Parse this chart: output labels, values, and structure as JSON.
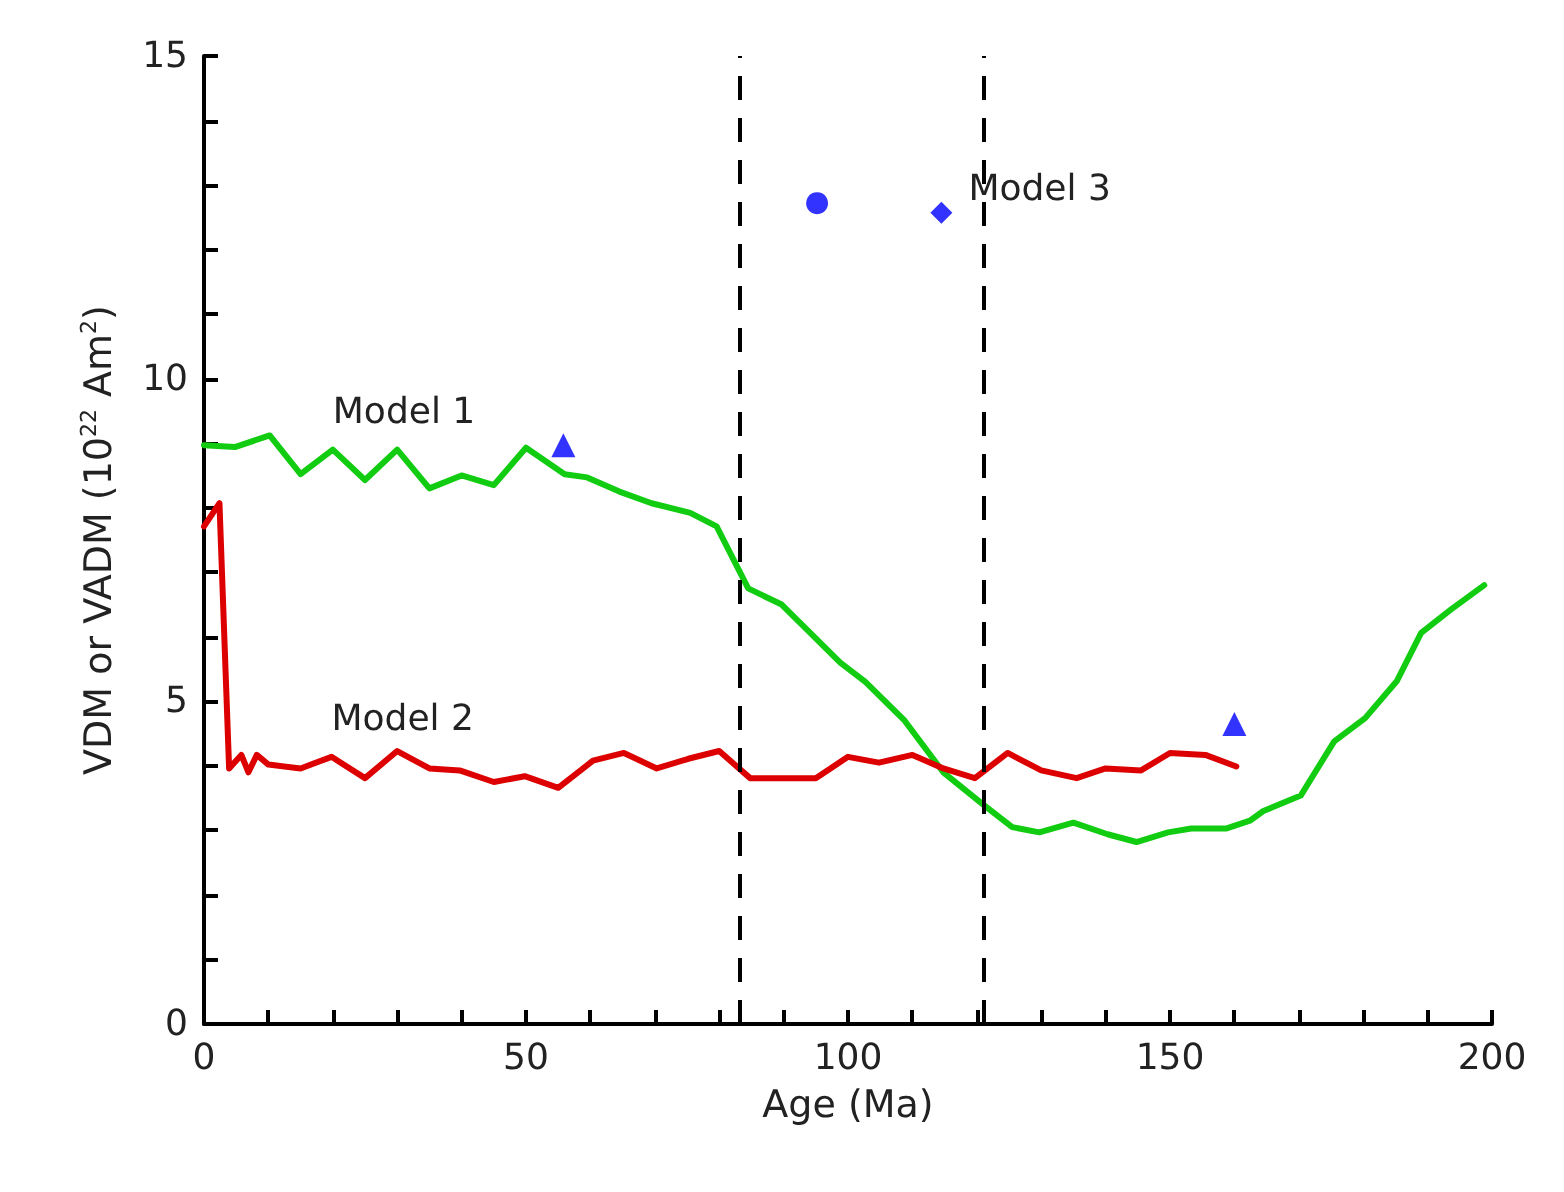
{
  "chart_data": {
    "type": "line",
    "xlabel": "Age (Ma)",
    "ylabel": "VDM or VADM (10$^{22}$ Am$^{2}$)",
    "xlim": [
      0,
      200
    ],
    "ylim": [
      0,
      15
    ],
    "xticks": [
      0,
      {
        "value": 10,
        "label": null
      },
      {
        "value": 20,
        "label": null
      },
      {
        "value": 30,
        "label": null
      },
      {
        "value": 40,
        "label": null
      },
      50,
      {
        "value": 60,
        "label": null
      },
      {
        "value": 70,
        "label": null
      },
      {
        "value": 80,
        "label": null
      },
      {
        "value": 90,
        "label": null
      },
      100,
      {
        "value": 110,
        "label": null
      },
      {
        "value": 120,
        "label": null
      },
      {
        "value": 130,
        "label": null
      },
      {
        "value": 140,
        "label": null
      },
      150,
      {
        "value": 160,
        "label": null
      },
      {
        "value": 170,
        "label": null
      },
      {
        "value": 180,
        "label": null
      },
      {
        "value": 190,
        "label": null
      },
      200
    ],
    "yticks": [
      0,
      {
        "value": 1,
        "label": null
      },
      {
        "value": 2,
        "label": null
      },
      {
        "value": 3,
        "label": null
      },
      {
        "value": 4,
        "label": null
      },
      5,
      {
        "value": 6,
        "label": null
      },
      {
        "value": 7,
        "label": null
      },
      {
        "value": 8,
        "label": null
      },
      {
        "value": 9,
        "label": null
      },
      10,
      {
        "value": 11,
        "label": null
      },
      {
        "value": 12,
        "label": null
      },
      {
        "value": 13,
        "label": null
      },
      {
        "value": 14,
        "label": null
      },
      15
    ],
    "grid": false,
    "legend": false,
    "line_style": "solid",
    "ref_lines": [
      {
        "axis": "x",
        "value": 83,
        "color": "#000000",
        "line_style": "dashed"
      },
      {
        "axis": "x",
        "value": 121,
        "color": "#000000",
        "line_style": "dashed"
      }
    ],
    "series": [
      {
        "name": "Model 1",
        "color": "#11cc11",
        "marker": "none",
        "x": [
          0,
          4.8,
          10.2,
          15,
          20,
          25,
          30,
          35,
          40,
          45,
          50,
          56,
          59.5,
          64.5,
          69.5,
          75.5,
          79.6,
          84.5,
          89.7,
          98.8,
          102.7,
          108.8,
          114.8,
          121,
          125.5,
          129.7,
          135,
          140.3,
          144.8,
          149.7,
          153.3,
          158.8,
          162.4,
          164.5,
          170.3,
          175.5,
          180.3,
          185.2,
          189,
          193.6,
          198.8
        ],
        "values": [
          8.97,
          8.94,
          9.12,
          8.52,
          8.9,
          8.43,
          8.9,
          8.3,
          8.5,
          8.35,
          8.93,
          8.52,
          8.47,
          8.25,
          8.07,
          7.92,
          7.71,
          6.75,
          6.5,
          5.6,
          5.3,
          4.7,
          3.9,
          3.4,
          3.05,
          2.97,
          3.12,
          2.94,
          2.82,
          2.97,
          3.03,
          3.03,
          3.15,
          3.3,
          3.54,
          4.38,
          4.74,
          5.31,
          6.06,
          6.42,
          6.8
        ]
      },
      {
        "name": "Model 2",
        "color": "#dd0000",
        "marker": "none",
        "x": [
          0,
          2.4,
          3.9,
          5.8,
          6.9,
          8.2,
          10,
          15,
          19.8,
          25,
          30,
          35,
          39.7,
          45,
          49.8,
          55,
          60.4,
          65.2,
          70.3,
          75.2,
          80,
          84.8,
          95,
          100,
          104.8,
          110,
          114.8,
          119.7,
          124.8,
          130,
          135.5,
          140,
          145.5,
          150,
          155.5,
          160.3
        ],
        "values": [
          7.71,
          8.07,
          3.96,
          4.17,
          3.9,
          4.17,
          4.02,
          3.96,
          4.14,
          3.81,
          4.23,
          3.96,
          3.93,
          3.75,
          3.84,
          3.66,
          4.08,
          4.2,
          3.96,
          4.11,
          4.23,
          3.81,
          3.81,
          4.14,
          4.05,
          4.17,
          3.96,
          3.81,
          4.2,
          3.93,
          3.81,
          3.96,
          3.93,
          4.2,
          4.17,
          3.99
        ]
      },
      {
        "type": "scatter",
        "color": "#3333ff",
        "marker": "triangle",
        "x": [
          55.8,
          160
        ],
        "values": [
          8.97,
          4.65
        ]
      },
      {
        "type": "scatter",
        "color": "#3333ff",
        "marker": "circle",
        "x": [
          95.2
        ],
        "values": [
          12.72
        ]
      },
      {
        "name": "Model 3",
        "type": "scatter",
        "color": "#3333ff",
        "marker": "diamond",
        "x": [
          114.5
        ],
        "values": [
          12.57
        ]
      }
    ]
  }
}
